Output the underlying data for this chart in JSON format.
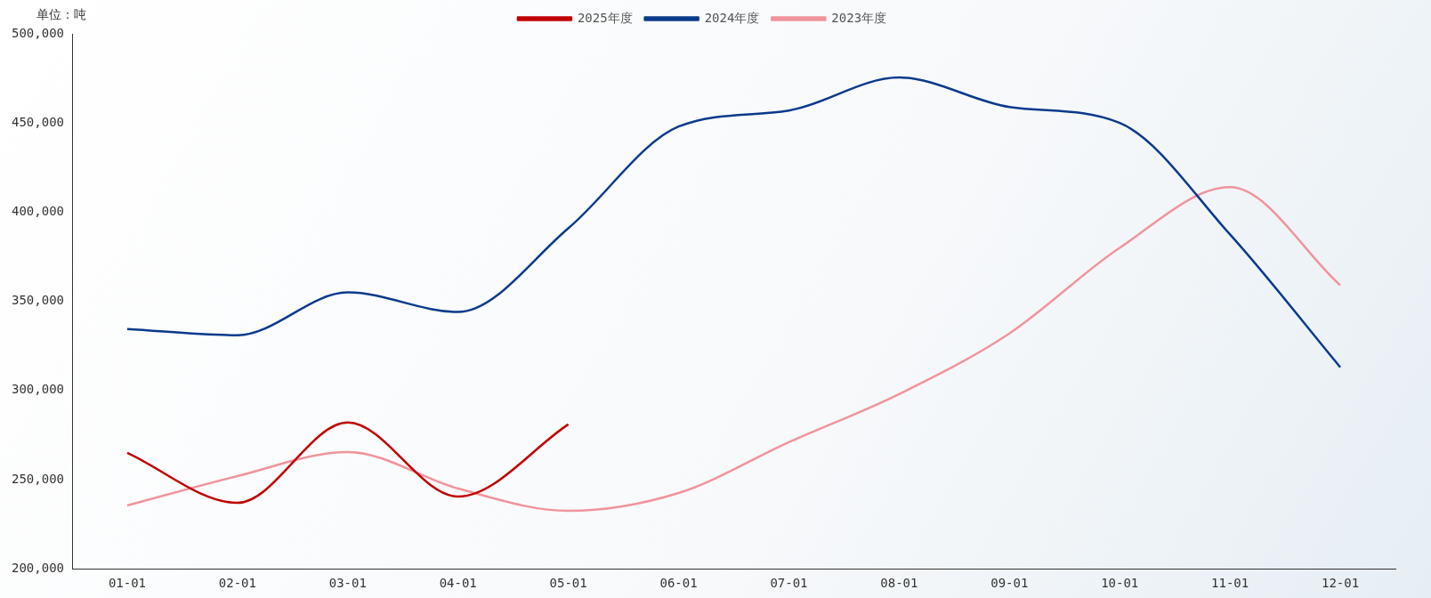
{
  "chart_data": {
    "type": "line",
    "ylabel": "单位：吨",
    "categories": [
      "01-01",
      "02-01",
      "03-01",
      "04-01",
      "05-01",
      "06-01",
      "07-01",
      "08-01",
      "09-01",
      "10-01",
      "11-01",
      "12-01"
    ],
    "series": [
      {
        "name": "2025年度",
        "color": "#c00000",
        "values": [
          265000,
          237000,
          282000,
          240500,
          281000,
          null,
          null,
          null,
          null,
          null,
          null,
          null
        ]
      },
      {
        "name": "2024年度",
        "color": "#0b3a8c",
        "values": [
          334500,
          331000,
          355000,
          344000,
          391000,
          448000,
          457000,
          475500,
          459000,
          450000,
          387500,
          313000
        ]
      },
      {
        "name": "2023年度",
        "color": "#f0949c",
        "values": [
          235500,
          252000,
          265500,
          245000,
          232500,
          242500,
          271000,
          298000,
          332000,
          380000,
          414000,
          359000
        ]
      }
    ],
    "ylim": [
      200000,
      500000
    ],
    "yticks": [
      {
        "value": 200000,
        "label": "200,000"
      },
      {
        "value": 250000,
        "label": "250,000"
      },
      {
        "value": 300000,
        "label": "300,000"
      },
      {
        "value": 350000,
        "label": "350,000"
      },
      {
        "value": 400000,
        "label": "400,000"
      },
      {
        "value": 450000,
        "label": "450,000"
      },
      {
        "value": 500000,
        "label": "500,000"
      }
    ],
    "legend": "top",
    "grid": false,
    "marker": "none",
    "line_style": "solid"
  }
}
